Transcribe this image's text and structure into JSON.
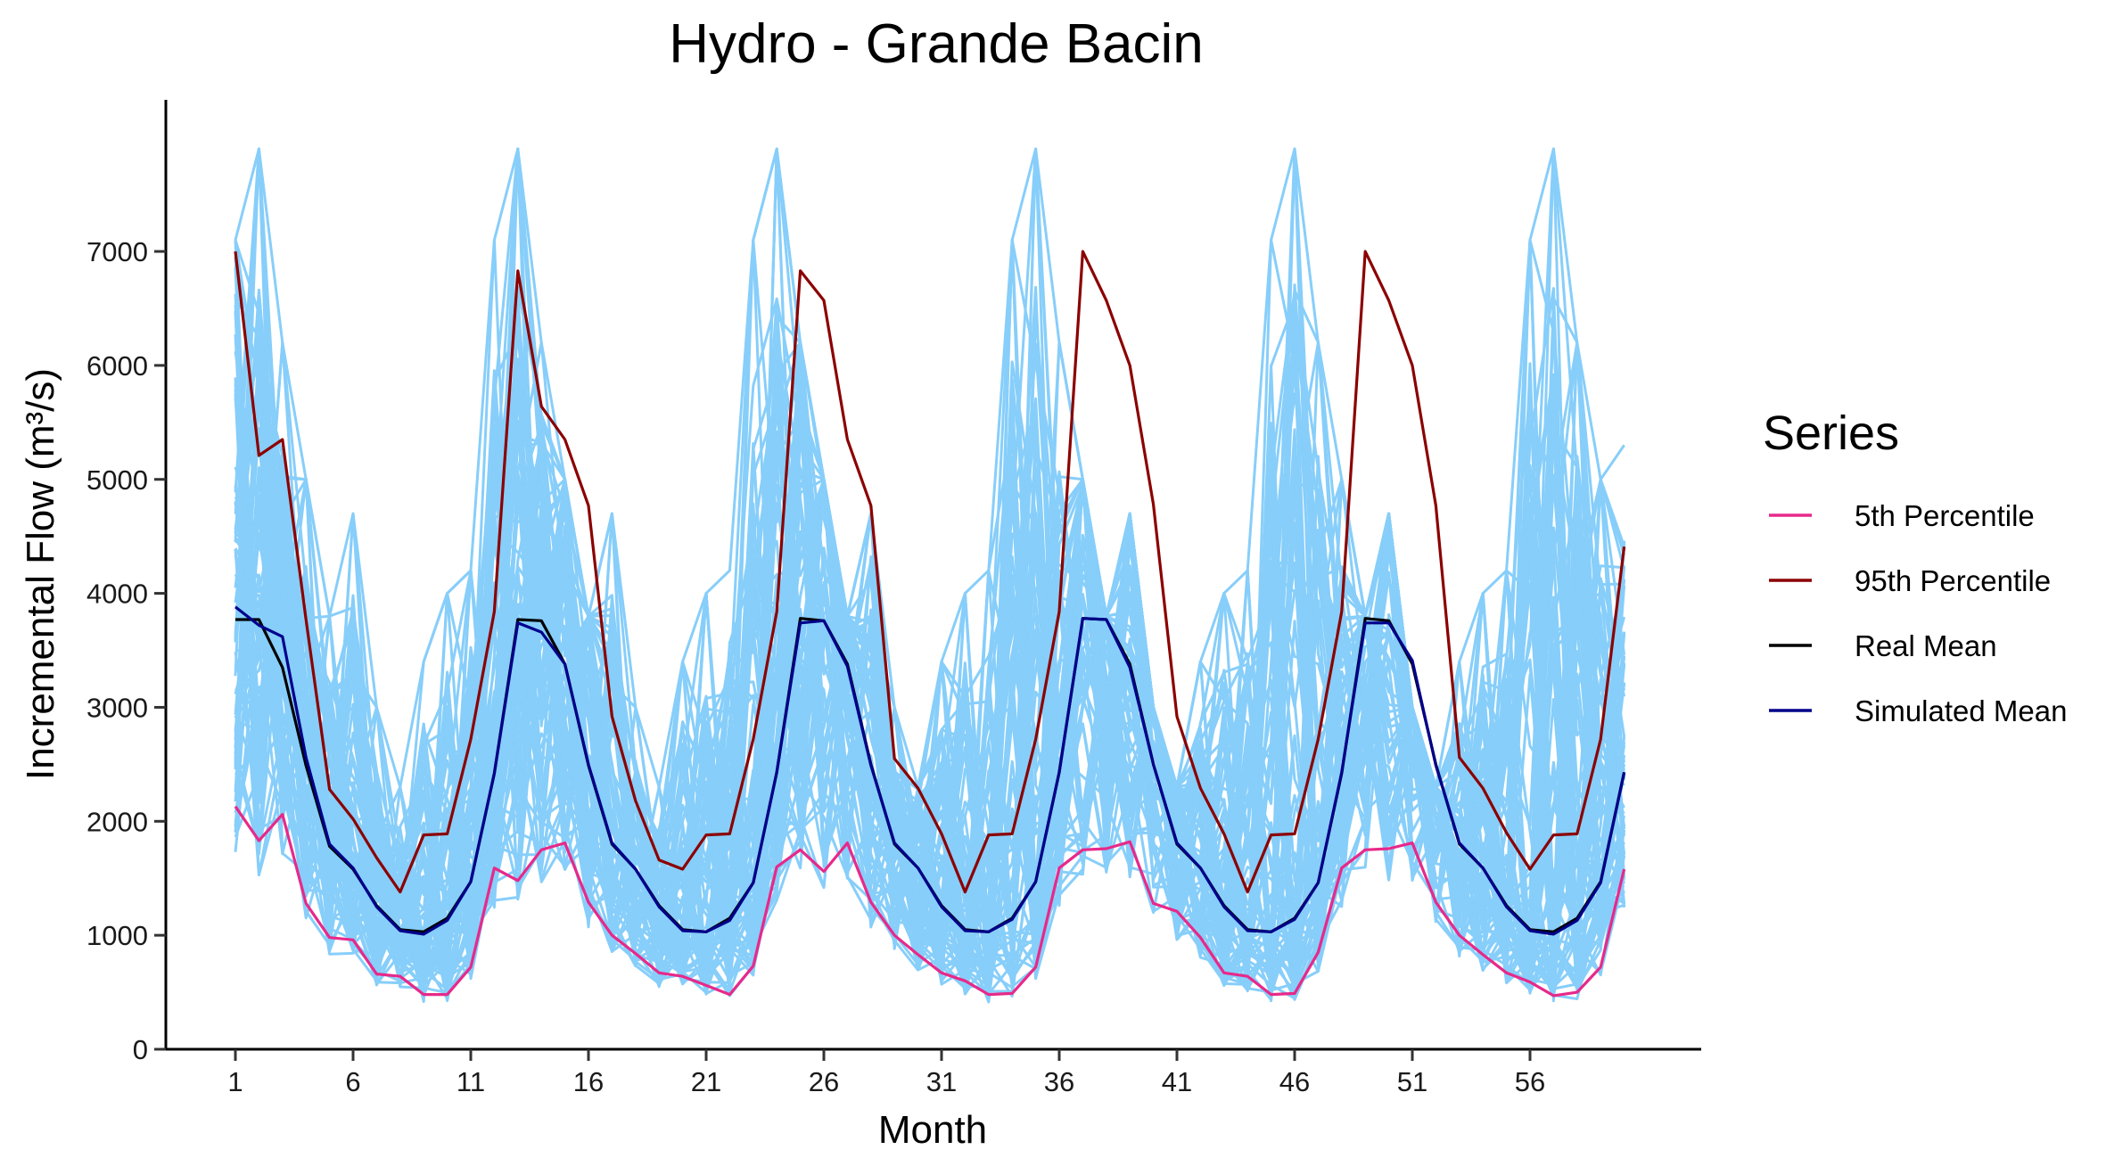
{
  "chart_data": {
    "type": "line",
    "title": "Hydro - Grande Bacin",
    "xlabel": "Month",
    "ylabel": "Incremental Flow (m³/s)",
    "xlim": [
      1,
      60
    ],
    "ylim": [
      0,
      8000
    ],
    "x_ticks": [
      1,
      6,
      11,
      16,
      21,
      26,
      31,
      36,
      41,
      46,
      51,
      56
    ],
    "y_ticks": [
      0,
      1000,
      2000,
      3000,
      4000,
      5000,
      6000,
      7000
    ],
    "grid": false,
    "legend_position": "right",
    "legend_title": "Series",
    "scenarios": {
      "description_color": "#87CEFA",
      "count": 80,
      "upper_envelope": [
        7100,
        7900,
        6200,
        5000,
        3800,
        4700,
        3000,
        2300,
        3400,
        4000,
        4200,
        7100,
        7900,
        6200,
        5000,
        3800,
        4700,
        3000,
        2300,
        3400,
        4000,
        4200,
        7100,
        7900,
        6200,
        5000,
        3800,
        4700,
        3000,
        2300,
        3400,
        4000,
        4200,
        7100,
        7900,
        6200,
        5000,
        3800,
        4700,
        3000,
        2300,
        3400,
        4000,
        4200,
        7100,
        7900,
        6200,
        5000,
        3800,
        4700,
        3000,
        2300,
        3400,
        4000,
        4200,
        7100,
        7900,
        6200,
        5000,
        5300
      ]
    },
    "series": [
      {
        "name": "5th Percentile",
        "color": "#E7298A",
        "values": [
          2130,
          1830,
          2060,
          1280,
          980,
          960,
          660,
          640,
          480,
          480,
          720,
          1590,
          1480,
          1750,
          1810,
          1290,
          1000,
          840,
          670,
          640,
          560,
          480,
          730,
          1600,
          1750,
          1560,
          1810,
          1290,
          1000,
          830,
          670,
          600,
          480,
          490,
          720,
          1590,
          1750,
          1760,
          1820,
          1280,
          1210,
          980,
          670,
          640,
          480,
          490,
          850,
          1590,
          1750,
          1760,
          1810,
          1290,
          1000,
          830,
          670,
          590,
          470,
          500,
          720,
          1580
        ]
      },
      {
        "name": "95th Percentile",
        "color": "#8B0000",
        "values": [
          7000,
          5210,
          5350,
          3770,
          2280,
          2020,
          1680,
          1380,
          1880,
          1890,
          2720,
          3840,
          6830,
          5640,
          5350,
          4770,
          2920,
          2180,
          1660,
          1580,
          1880,
          1890,
          2720,
          3840,
          6830,
          6570,
          5350,
          4770,
          2550,
          2290,
          1890,
          1380,
          1880,
          1890,
          2720,
          3840,
          7000,
          6570,
          6000,
          4780,
          2920,
          2290,
          1890,
          1380,
          1880,
          1890,
          2720,
          3840,
          7000,
          6570,
          6000,
          4770,
          2560,
          2290,
          1900,
          1580,
          1880,
          1890,
          2720,
          4410
        ]
      },
      {
        "name": "Real Mean",
        "color": "#000000",
        "values": [
          3770,
          3770,
          3350,
          2490,
          1780,
          1580,
          1260,
          1050,
          1030,
          1150,
          1470,
          2420,
          3770,
          3760,
          3380,
          2490,
          1800,
          1580,
          1260,
          1050,
          1030,
          1150,
          1460,
          2430,
          3780,
          3760,
          3380,
          2500,
          1800,
          1590,
          1260,
          1050,
          1030,
          1150,
          1470,
          2430,
          3780,
          3770,
          3380,
          2500,
          1800,
          1590,
          1260,
          1050,
          1030,
          1150,
          1460,
          2420,
          3780,
          3760,
          3380,
          2500,
          1800,
          1590,
          1260,
          1050,
          1030,
          1150,
          1470,
          2430
        ]
      },
      {
        "name": "Simulated Mean",
        "color": "#00008B",
        "values": [
          3880,
          3720,
          3620,
          2560,
          1800,
          1590,
          1250,
          1040,
          1010,
          1130,
          1470,
          2420,
          3740,
          3660,
          3380,
          2500,
          1810,
          1580,
          1250,
          1040,
          1030,
          1130,
          1460,
          2430,
          3740,
          3760,
          3360,
          2490,
          1810,
          1590,
          1250,
          1040,
          1030,
          1140,
          1470,
          2430,
          3780,
          3770,
          3350,
          2500,
          1810,
          1590,
          1250,
          1040,
          1030,
          1140,
          1460,
          2430,
          3740,
          3740,
          3410,
          2490,
          1810,
          1590,
          1250,
          1040,
          1010,
          1130,
          1460,
          2430
        ]
      }
    ]
  }
}
